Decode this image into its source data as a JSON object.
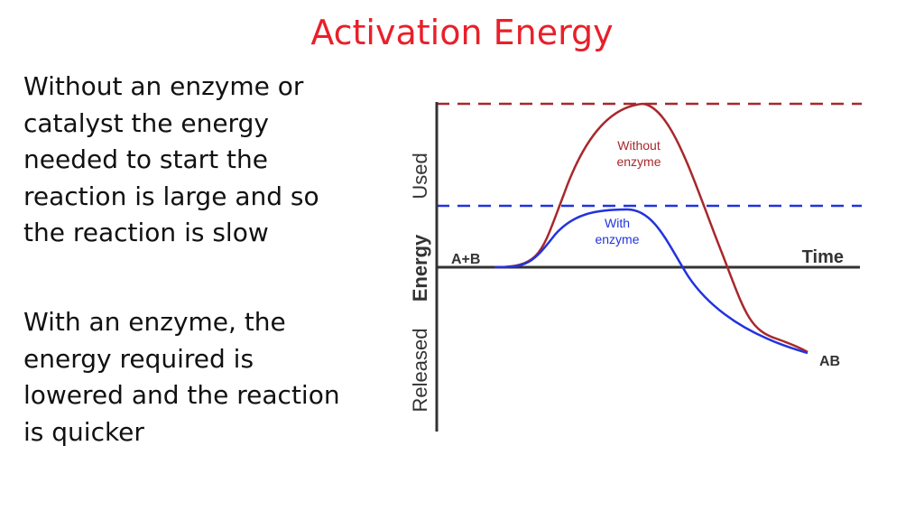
{
  "slide": {
    "title": "Activation Energy",
    "paragraph_1": "Without an enzyme or\ncatalyst the energy\nneeded to start the\nreaction is large and so\nthe reaction is slow",
    "paragraph_2": "With an enzyme, the\nenergy required is\nlowered and the reaction\nis quicker"
  },
  "diagram": {
    "axis_labels": {
      "used": "Used",
      "energy": "Energy",
      "released": "Released",
      "time": "Time"
    },
    "reactant_label": "A+B",
    "product_label": "AB",
    "curves": {
      "without_enzyme_line1": "Without",
      "without_enzyme_line2": "enzyme",
      "with_enzyme_line1": "With",
      "with_enzyme_line2": "enzyme"
    },
    "colors": {
      "without_enzyme": "#a8282c",
      "with_enzyme": "#2233dd",
      "axis": "#333333",
      "title": "#e8202a"
    }
  }
}
